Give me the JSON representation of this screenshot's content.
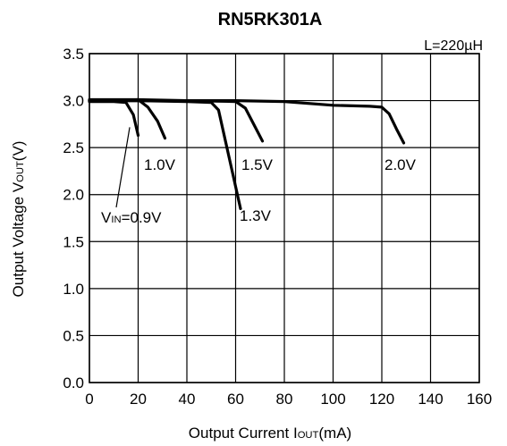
{
  "chart_data": {
    "type": "line",
    "title": "RN5RK301A",
    "subtitle": "L=220µH",
    "xlabel": {
      "main": "Output Current I",
      "sub": "OUT",
      "unit": "(mA)"
    },
    "ylabel": {
      "main": "Output Voltage V",
      "sub": "OUT",
      "unit": "(V)"
    },
    "xlim": [
      0,
      160
    ],
    "ylim": [
      0.0,
      3.5
    ],
    "xticks": [
      "0",
      "20",
      "40",
      "60",
      "80",
      "100",
      "120",
      "140",
      "160"
    ],
    "yticks": [
      "0.0",
      "0.5",
      "1.0",
      "1.5",
      "2.0",
      "2.5",
      "3.0",
      "3.5"
    ],
    "grid": true,
    "series": [
      {
        "name": "0.9V",
        "label": {
          "main": "V",
          "sub": "IN",
          "rest": "=0.9V"
        },
        "x": [
          0,
          10,
          15,
          18,
          20
        ],
        "y": [
          2.99,
          2.99,
          2.98,
          2.85,
          2.63
        ]
      },
      {
        "name": "1.0V",
        "label": {
          "main": "",
          "sub": "",
          "rest": "1.0V"
        },
        "x": [
          0,
          10,
          20,
          24,
          28,
          31
        ],
        "y": [
          3.0,
          3.0,
          3.01,
          2.93,
          2.78,
          2.6
        ]
      },
      {
        "name": "1.3V",
        "label": {
          "main": "",
          "sub": "",
          "rest": "1.3V"
        },
        "x": [
          0,
          20,
          40,
          50,
          53,
          56,
          59,
          62
        ],
        "y": [
          3.0,
          3.0,
          2.99,
          2.98,
          2.9,
          2.55,
          2.2,
          1.85
        ]
      },
      {
        "name": "1.5V",
        "label": {
          "main": "",
          "sub": "",
          "rest": "1.5V"
        },
        "x": [
          0,
          20,
          40,
          60,
          64,
          68,
          71
        ],
        "y": [
          3.0,
          3.0,
          3.0,
          2.99,
          2.92,
          2.72,
          2.57
        ]
      },
      {
        "name": "2.0V",
        "label": {
          "main": "",
          "sub": "",
          "rest": "2.0V"
        },
        "x": [
          0,
          20,
          40,
          60,
          80,
          100,
          115,
          120,
          123,
          126,
          129
        ],
        "y": [
          3.01,
          3.01,
          3.0,
          3.0,
          2.99,
          2.95,
          2.94,
          2.93,
          2.86,
          2.7,
          2.55
        ]
      }
    ]
  }
}
